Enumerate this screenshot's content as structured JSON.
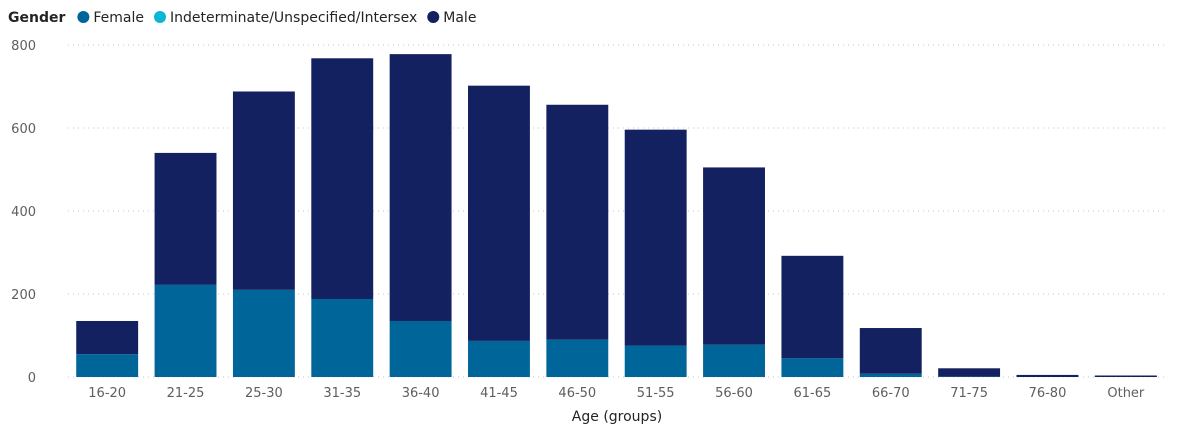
{
  "chart_data": {
    "type": "bar",
    "stacked": true,
    "legend": {
      "title": "Gender",
      "placement": "top-left"
    },
    "categories": [
      "16-20",
      "21-25",
      "25-30",
      "31-35",
      "36-40",
      "41-45",
      "46-50",
      "51-55",
      "56-60",
      "61-65",
      "66-70",
      "71-75",
      "76-80",
      "Other"
    ],
    "series": [
      {
        "name": "Female",
        "color": "#006699",
        "values": [
          55,
          222,
          210,
          188,
          135,
          87,
          90,
          76,
          78,
          45,
          8,
          1,
          0,
          0
        ]
      },
      {
        "name": "Indeterminate/Unspecified/Intersex",
        "color": "#0BB5D4",
        "values": [
          0,
          0,
          0,
          0,
          0,
          0,
          0,
          0,
          0,
          0,
          0,
          0,
          0,
          0
        ]
      },
      {
        "name": "Male",
        "color": "#142160",
        "values": [
          80,
          318,
          478,
          580,
          643,
          615,
          566,
          520,
          427,
          247,
          110,
          20,
          5,
          3
        ]
      }
    ],
    "xlabel": "Age (groups)",
    "ylabel": "",
    "ylim": [
      0,
      800
    ],
    "yticks": [
      0,
      200,
      400,
      600,
      800
    ],
    "grid": true
  }
}
